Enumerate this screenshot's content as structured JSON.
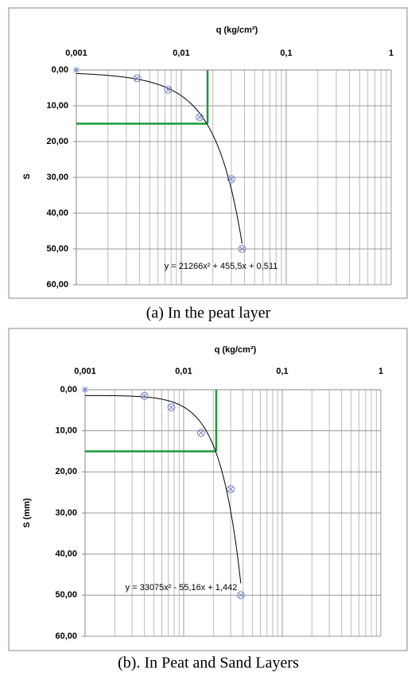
{
  "chart_data": [
    {
      "type": "scatter",
      "title": "q (kg/cm²)",
      "y_label": "S",
      "caption": "(a)  In the peat layer",
      "log_x": true,
      "grid": true,
      "xlim": [
        0.001,
        1
      ],
      "xticks": [
        {
          "value": 0.001,
          "label": "0,001"
        },
        {
          "value": 0.01,
          "label": "0,01"
        },
        {
          "value": 0.1,
          "label": "0,1"
        },
        1
      ],
      "xminorticks": [
        0.002,
        0.003,
        0.004,
        0.005,
        0.006,
        0.007,
        0.008,
        0.009,
        0.02,
        0.03,
        0.04,
        0.05,
        0.06,
        0.07,
        0.08,
        0.09,
        0.2,
        0.3,
        0.4,
        0.5,
        0.6,
        0.7,
        0.8,
        0.9
      ],
      "ylim": [
        0,
        60
      ],
      "yticks": [
        {
          "value": 0,
          "label": "0,00"
        },
        {
          "value": 10,
          "label": "10,00"
        },
        {
          "value": 20,
          "label": "20,00"
        },
        {
          "value": 30,
          "label": "30,00"
        },
        {
          "value": 40,
          "label": "40,00"
        },
        {
          "value": 50,
          "label": "50,00"
        },
        {
          "value": 60,
          "label": "60,00"
        }
      ],
      "series": [
        {
          "marker": "star",
          "color": "#7b86c6",
          "x": [
            0.001
          ],
          "y": [
            0
          ]
        },
        {
          "marker": "circle-x",
          "color": "#7b86c6",
          "x": [
            0.0038,
            0.0075,
            0.015,
            0.03,
            0.038
          ],
          "y": [
            2.3,
            5.5,
            13.2,
            30.5,
            50
          ]
        }
      ],
      "trendline": {
        "label": "y = 21266x² + 455,5x + 0,511",
        "coefficients": [
          21266,
          455.5,
          0.511
        ],
        "color": "#000000"
      },
      "guide": {
        "x": 0.0178,
        "y": 15,
        "color": "#1a9a3c"
      }
    },
    {
      "type": "scatter",
      "title": "q (kg/cm²)",
      "y_label": "S (mm)",
      "caption": "(b). In Peat and Sand Layers",
      "log_x": true,
      "grid": true,
      "xlim": [
        0.001,
        1
      ],
      "xticks": [
        {
          "value": 0.001,
          "label": "0,001"
        },
        {
          "value": 0.01,
          "label": "0,01"
        },
        {
          "value": 0.1,
          "label": "0,1"
        },
        1
      ],
      "xminorticks": [
        0.002,
        0.003,
        0.004,
        0.005,
        0.006,
        0.007,
        0.008,
        0.009,
        0.02,
        0.03,
        0.04,
        0.05,
        0.06,
        0.07,
        0.08,
        0.09,
        0.2,
        0.3,
        0.4,
        0.5,
        0.6,
        0.7,
        0.8,
        0.9
      ],
      "ylim": [
        0,
        60
      ],
      "yticks": [
        {
          "value": 0,
          "label": "0,00"
        },
        {
          "value": 10,
          "label": "10,00"
        },
        {
          "value": 20,
          "label": "20,00"
        },
        {
          "value": 30,
          "label": "30,00"
        },
        {
          "value": 40,
          "label": "40,00"
        },
        {
          "value": 50,
          "label": "50,00"
        },
        {
          "value": 60,
          "label": "60,00"
        }
      ],
      "series": [
        {
          "marker": "star",
          "color": "#7b86c6",
          "x": [
            0.001
          ],
          "y": [
            0
          ]
        },
        {
          "marker": "circle-x",
          "color": "#7b86c6",
          "x": [
            0.004,
            0.0075,
            0.015,
            0.03,
            0.038
          ],
          "y": [
            1.5,
            4.3,
            10.5,
            24.2,
            50
          ]
        }
      ],
      "trendline": {
        "label": "y = 33075x² - 55,16x + 1,442",
        "coefficients": [
          33075,
          -55.16,
          1.442
        ],
        "color": "#000000"
      },
      "guide": {
        "x": 0.0214,
        "y": 15,
        "color": "#1a9a3c"
      }
    }
  ]
}
